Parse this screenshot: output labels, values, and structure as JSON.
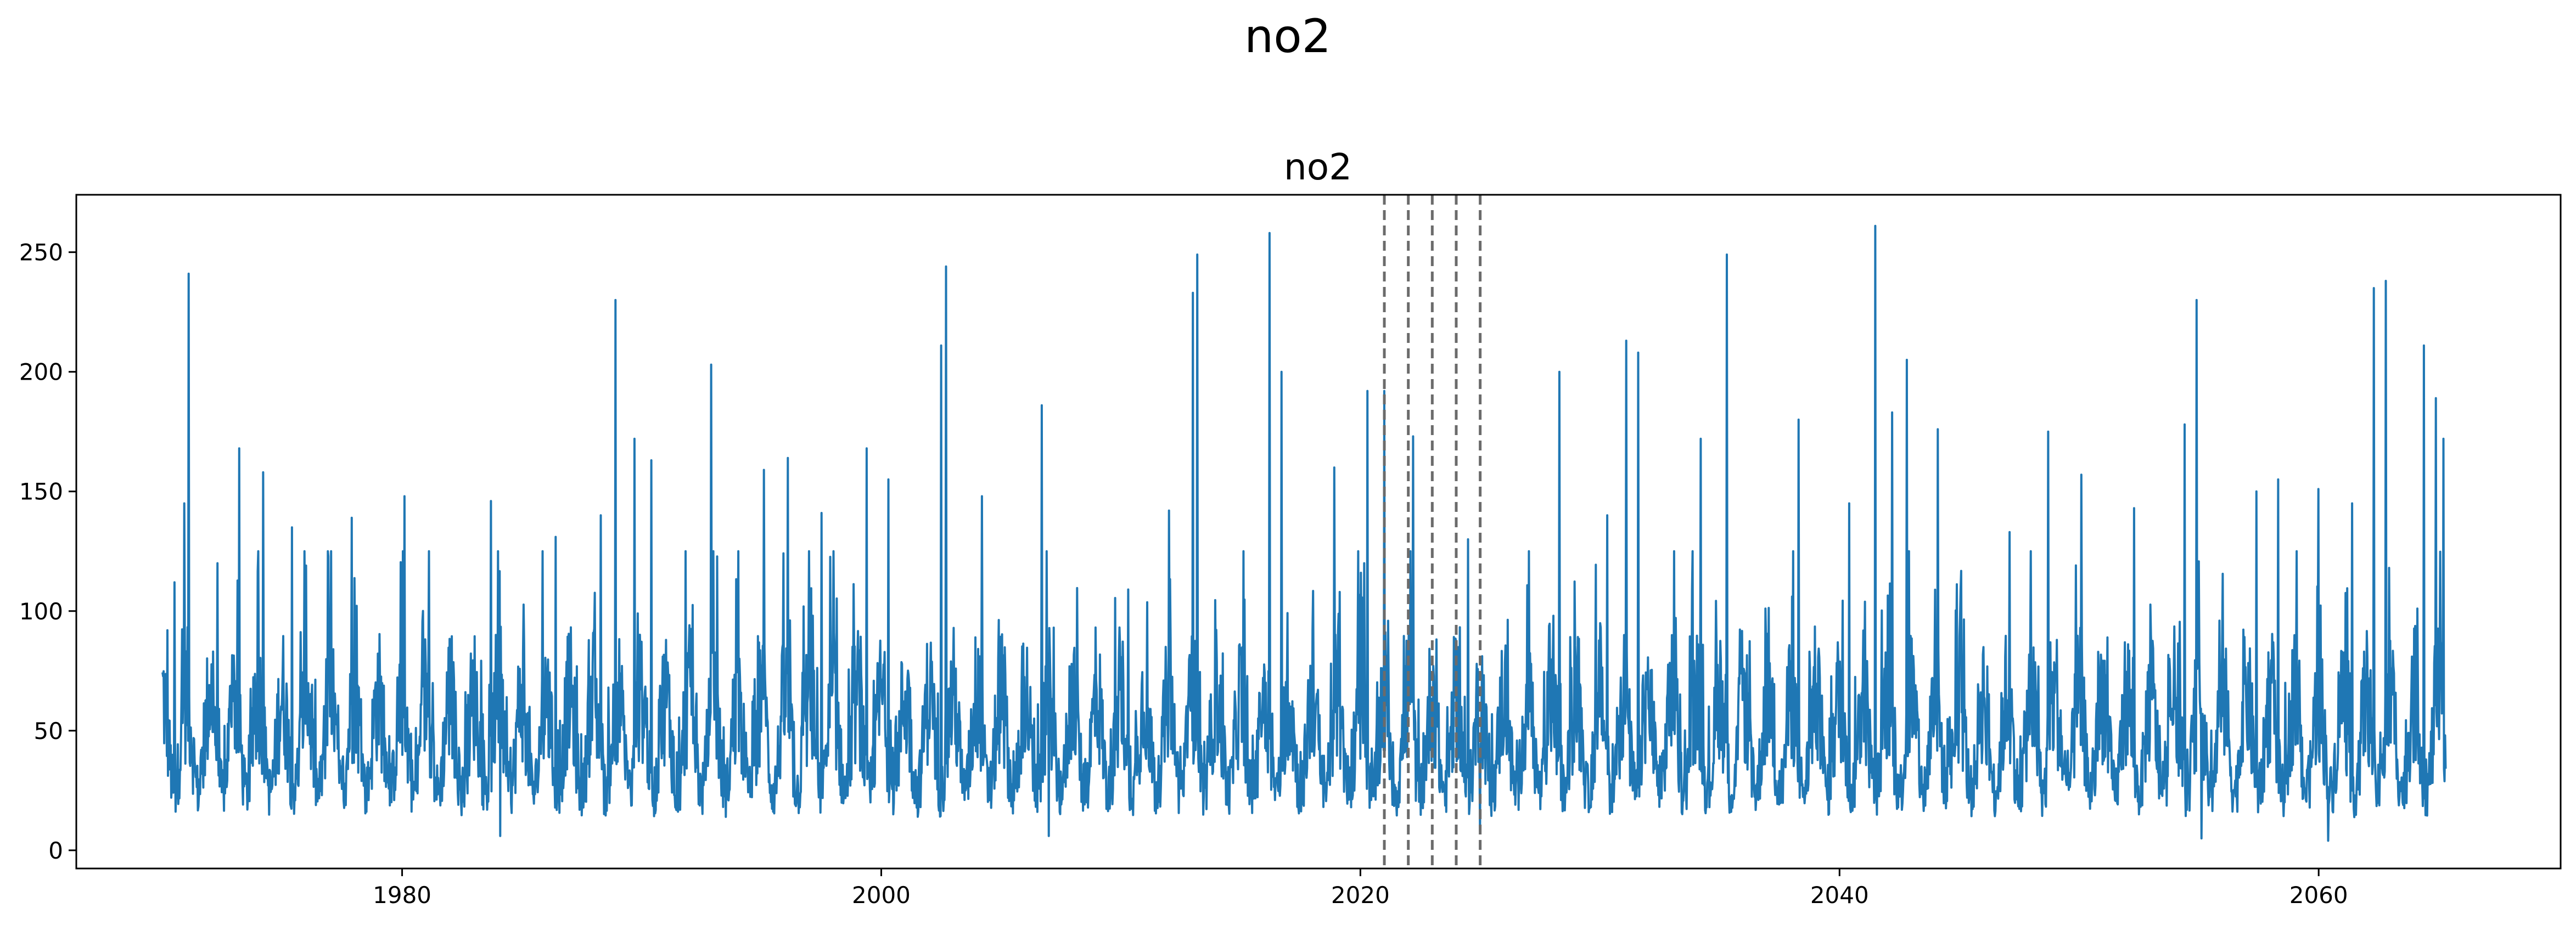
{
  "figure": {
    "suptitle": "no2"
  },
  "chart_data": {
    "type": "line",
    "title": "no2",
    "xlabel": "",
    "ylabel": "",
    "xlim": [
      1966.4,
      2070.1
    ],
    "ylim": [
      -7.6,
      274
    ],
    "x_ticks": [
      1980,
      2000,
      2020,
      2040,
      2060
    ],
    "y_ticks": [
      0,
      50,
      100,
      150,
      200,
      250
    ],
    "grid": false,
    "legend": "none",
    "series": [
      {
        "color": "#1f77b4",
        "x_range": [
          1970.0,
          2065.3
        ],
        "y_range": [
          4,
          261
        ],
        "baseline": 45,
        "peaks": [
          {
            "x": 1970.2,
            "y": 92
          },
          {
            "x": 1970.5,
            "y": 112
          },
          {
            "x": 1970.9,
            "y": 145
          },
          {
            "x": 1971.1,
            "y": 241
          },
          {
            "x": 1972.3,
            "y": 120
          },
          {
            "x": 1973.2,
            "y": 168
          },
          {
            "x": 1974.2,
            "y": 158
          },
          {
            "x": 1975.4,
            "y": 135
          },
          {
            "x": 1976.0,
            "y": 119
          },
          {
            "x": 1977.9,
            "y": 139
          },
          {
            "x": 1980.1,
            "y": 148
          },
          {
            "x": 1983.7,
            "y": 146
          },
          {
            "x": 1986.4,
            "y": 131
          },
          {
            "x": 1988.3,
            "y": 140
          },
          {
            "x": 1988.9,
            "y": 230
          },
          {
            "x": 1989.7,
            "y": 172
          },
          {
            "x": 1990.4,
            "y": 163
          },
          {
            "x": 1992.9,
            "y": 203
          },
          {
            "x": 1995.1,
            "y": 159
          },
          {
            "x": 1996.1,
            "y": 164
          },
          {
            "x": 1997.5,
            "y": 141
          },
          {
            "x": 1999.4,
            "y": 168
          },
          {
            "x": 2000.3,
            "y": 155
          },
          {
            "x": 2002.5,
            "y": 211
          },
          {
            "x": 2002.7,
            "y": 244
          },
          {
            "x": 2004.2,
            "y": 148
          },
          {
            "x": 2006.7,
            "y": 186
          },
          {
            "x": 2010.3,
            "y": 109
          },
          {
            "x": 2012.0,
            "y": 142
          },
          {
            "x": 2013.0,
            "y": 233
          },
          {
            "x": 2013.2,
            "y": 249
          },
          {
            "x": 2016.2,
            "y": 258
          },
          {
            "x": 2016.7,
            "y": 200
          },
          {
            "x": 2018.9,
            "y": 160
          },
          {
            "x": 2020.3,
            "y": 192
          },
          {
            "x": 2021.0,
            "y": 192
          },
          {
            "x": 2022.2,
            "y": 173
          },
          {
            "x": 2024.5,
            "y": 130
          },
          {
            "x": 2028.3,
            "y": 200
          },
          {
            "x": 2030.3,
            "y": 140
          },
          {
            "x": 2031.1,
            "y": 213
          },
          {
            "x": 2031.6,
            "y": 208
          },
          {
            "x": 2034.2,
            "y": 172
          },
          {
            "x": 2035.3,
            "y": 249
          },
          {
            "x": 2038.3,
            "y": 180
          },
          {
            "x": 2040.4,
            "y": 145
          },
          {
            "x": 2041.5,
            "y": 261
          },
          {
            "x": 2042.2,
            "y": 183
          },
          {
            "x": 2042.8,
            "y": 205
          },
          {
            "x": 2044.1,
            "y": 176
          },
          {
            "x": 2047.1,
            "y": 133
          },
          {
            "x": 2048.7,
            "y": 175
          },
          {
            "x": 2050.1,
            "y": 157
          },
          {
            "x": 2052.3,
            "y": 143
          },
          {
            "x": 2054.4,
            "y": 178
          },
          {
            "x": 2054.9,
            "y": 230
          },
          {
            "x": 2057.4,
            "y": 150
          },
          {
            "x": 2058.3,
            "y": 155
          },
          {
            "x": 2060.0,
            "y": 151
          },
          {
            "x": 2061.4,
            "y": 145
          },
          {
            "x": 2062.3,
            "y": 235
          },
          {
            "x": 2062.8,
            "y": 238
          },
          {
            "x": 2064.4,
            "y": 211
          },
          {
            "x": 2064.9,
            "y": 189
          },
          {
            "x": 2065.2,
            "y": 172
          }
        ],
        "troughs": [
          {
            "x": 1984.1,
            "y": 6
          },
          {
            "x": 2007.0,
            "y": 6
          },
          {
            "x": 2025.0,
            "y": 8
          },
          {
            "x": 2055.1,
            "y": 5
          },
          {
            "x": 2060.4,
            "y": 4
          }
        ]
      }
    ],
    "vlines": {
      "x": [
        2021,
        2022,
        2023,
        2024,
        2025
      ],
      "color": "#6b6b6b",
      "style": "dashed"
    }
  }
}
